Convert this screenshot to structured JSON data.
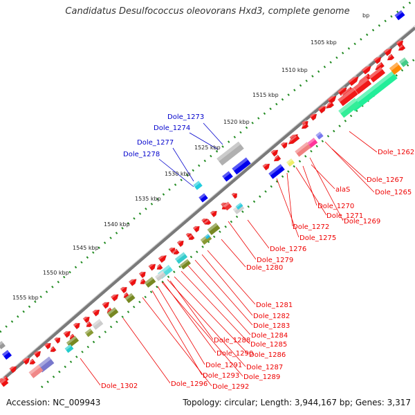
{
  "title": "Candidatus Desulfococcus oleovorans Hxd3, complete genome",
  "footer": {
    "accession": "Accession: NC_009943",
    "summary": "Topology: circular; Length: 3,944,167 bp; Genes: 3,317"
  },
  "kbp_ticks": [
    "1505 kbp",
    "1510 kbp",
    "1515 kbp",
    "1520 kbp",
    "1525 kbp",
    "1530 kbp",
    "1535 kbp",
    "1540 kbp",
    "1545 kbp",
    "1550 kbp",
    "1555 kbp"
  ],
  "kbp_partial": "bp",
  "colors": {
    "forward_cds": "#ee1111",
    "highlight_blue": "#0000ee",
    "label_red": "#ee0000",
    "label_blue": "#0000cc",
    "backbone": "#777777",
    "tick_green": "#228b22"
  },
  "outer_labels": [
    "Dole_1273",
    "Dole_1274",
    "Dole_1277",
    "Dole_1278"
  ],
  "inner_labels": [
    "Dole_1262",
    "Dole_1267",
    "Dole_1265",
    "alaS",
    "Dole_1270",
    "Dole_1271",
    "Dole_1269",
    "Dole_1272",
    "Dole_1275",
    "Dole_1276",
    "Dole_1279",
    "Dole_1280",
    "Dole_1281",
    "Dole_1282",
    "Dole_1283",
    "Dole_1284",
    "Dole_1288",
    "Dole_1285",
    "Dole_1290",
    "Dole_1286",
    "Dole_1291",
    "Dole_1287",
    "Dole_1293",
    "Dole_1289",
    "Dole_1296",
    "Dole_1292",
    "Dole_1302"
  ]
}
